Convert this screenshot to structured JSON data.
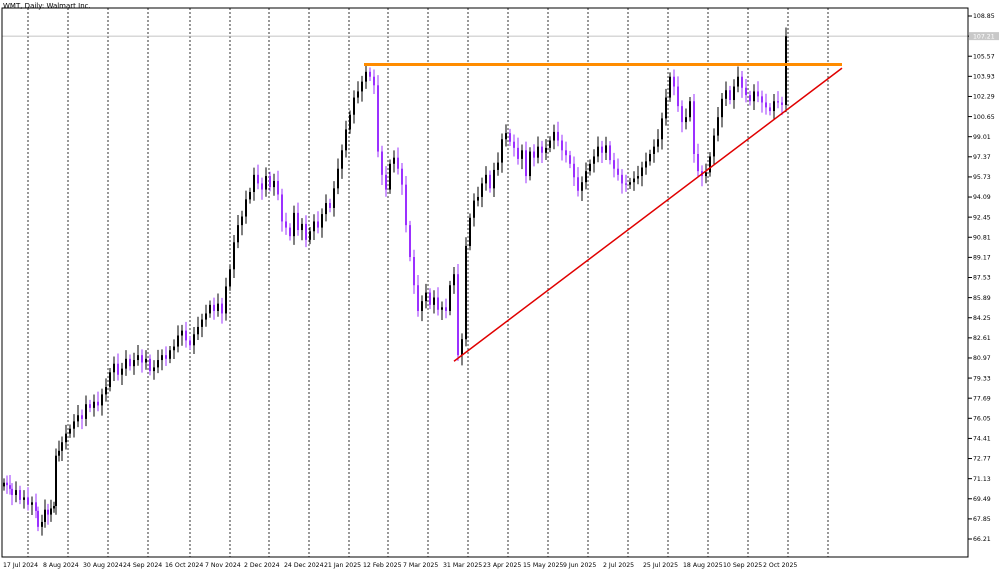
{
  "header": {
    "title": "WMT, Daily: Walmart Inc."
  },
  "colors": {
    "candle_up": "#000000",
    "candle_down": "#9b30ff",
    "resistance": "#ff8c00",
    "support": "#e00000",
    "grid": "#000000",
    "bid_line": "#b0b0b0"
  },
  "chart_data": {
    "type": "candlestick",
    "ylim": [
      65.0,
      109.5
    ],
    "y_ticks": [
      "108.85",
      "107.21",
      "105.57",
      "103.93",
      "102.29",
      "100.65",
      "99.01",
      "97.37",
      "95.73",
      "94.09",
      "92.45",
      "90.81",
      "89.17",
      "87.53",
      "85.89",
      "84.25",
      "82.61",
      "80.97",
      "79.33",
      "77.69",
      "76.05",
      "74.41",
      "72.77",
      "71.13",
      "69.49",
      "67.85",
      "66.21"
    ],
    "x_labels": [
      "17 Jul 2024",
      "8 Aug 2024",
      "30 Aug 2024",
      "24 Sep 2024",
      "16 Oct 2024",
      "7 Nov 2024",
      "2 Dec 2024",
      "24 Dec 2024",
      "21 Jan 2025",
      "12 Feb 2025",
      "7 Mar 2025",
      "31 Mar 2025",
      "23 Apr 2025",
      "15 May 2025",
      "9 Jun 2025",
      "2 Jul 2025",
      "25 Jul 2025",
      "18 Aug 2025",
      "10 Sep 2025",
      "2 Oct 2025"
    ],
    "current_price": "107.21",
    "resistance": {
      "level": 104.9,
      "from": "12 Feb 2025",
      "to": "future"
    },
    "support": {
      "from": [
        "31 Mar 2025",
        80.7
      ],
      "to": [
        "future",
        104.6
      ]
    },
    "closes": [
      [
        0,
        70.8
      ],
      [
        3,
        70.6
      ],
      [
        6,
        70.3
      ],
      [
        8,
        69.8
      ],
      [
        12,
        70.2
      ],
      [
        16,
        69.4
      ],
      [
        20,
        69.6
      ],
      [
        24,
        69.0
      ],
      [
        28,
        69.2
      ],
      [
        32,
        68.5
      ],
      [
        34,
        67.2
      ],
      [
        38,
        67.6
      ],
      [
        41,
        68.6
      ],
      [
        44,
        68.2
      ],
      [
        47,
        68.7
      ],
      [
        50,
        68.9
      ],
      [
        52,
        73.0
      ],
      [
        55,
        73.4
      ],
      [
        58,
        74.1
      ],
      [
        62,
        74.8
      ],
      [
        66,
        75.2
      ],
      [
        70,
        75.8
      ],
      [
        74,
        76.3
      ],
      [
        78,
        76.0
      ],
      [
        82,
        77.2
      ],
      [
        86,
        76.9
      ],
      [
        90,
        77.4
      ],
      [
        94,
        77.1
      ],
      [
        98,
        78.0
      ],
      [
        102,
        78.6
      ],
      [
        106,
        79.8
      ],
      [
        110,
        80.5
      ],
      [
        114,
        79.6
      ],
      [
        118,
        80.1
      ],
      [
        122,
        80.9
      ],
      [
        126,
        80.3
      ],
      [
        130,
        80.8
      ],
      [
        134,
        81.2
      ],
      [
        138,
        80.6
      ],
      [
        142,
        80.9
      ],
      [
        146,
        79.9
      ],
      [
        150,
        80.2
      ],
      [
        154,
        80.8
      ],
      [
        158,
        81.2
      ],
      [
        162,
        80.9
      ],
      [
        166,
        81.6
      ],
      [
        170,
        81.9
      ],
      [
        174,
        82.8
      ],
      [
        178,
        83.2
      ],
      [
        182,
        82.4
      ],
      [
        186,
        82.0
      ],
      [
        190,
        82.9
      ],
      [
        194,
        83.5
      ],
      [
        198,
        84.1
      ],
      [
        202,
        84.6
      ],
      [
        206,
        85.3
      ],
      [
        210,
        84.8
      ],
      [
        214,
        85.4
      ],
      [
        218,
        84.6
      ],
      [
        222,
        86.8
      ],
      [
        226,
        88.2
      ],
      [
        230,
        90.4
      ],
      [
        234,
        91.8
      ],
      [
        238,
        92.5
      ],
      [
        242,
        93.9
      ],
      [
        246,
        94.5
      ],
      [
        250,
        95.9
      ],
      [
        254,
        95.2
      ],
      [
        258,
        94.7
      ],
      [
        262,
        95.8
      ],
      [
        266,
        94.9
      ],
      [
        270,
        95.4
      ],
      [
        274,
        94.3
      ],
      [
        278,
        92.1
      ],
      [
        282,
        91.6
      ],
      [
        286,
        90.9
      ],
      [
        290,
        92.8
      ],
      [
        294,
        91.4
      ],
      [
        298,
        91.9
      ],
      [
        302,
        90.6
      ],
      [
        306,
        91.3
      ],
      [
        310,
        92.1
      ],
      [
        314,
        91.6
      ],
      [
        318,
        92.7
      ],
      [
        322,
        93.6
      ],
      [
        326,
        93.2
      ],
      [
        330,
        94.8
      ],
      [
        334,
        96.4
      ],
      [
        338,
        97.9
      ],
      [
        342,
        99.6
      ],
      [
        346,
        100.8
      ],
      [
        350,
        102.2
      ],
      [
        354,
        102.7
      ],
      [
        358,
        103.5
      ],
      [
        362,
        104.3
      ],
      [
        366,
        103.9
      ],
      [
        370,
        103.2
      ],
      [
        374,
        97.8
      ],
      [
        378,
        95.9
      ],
      [
        382,
        94.7
      ],
      [
        386,
        96.8
      ],
      [
        390,
        97.3
      ],
      [
        394,
        96.4
      ],
      [
        398,
        95.1
      ],
      [
        402,
        91.8
      ],
      [
        406,
        89.2
      ],
      [
        410,
        86.9
      ],
      [
        414,
        84.8
      ],
      [
        418,
        85.6
      ],
      [
        422,
        86.3
      ],
      [
        426,
        85.3
      ],
      [
        430,
        85.9
      ],
      [
        434,
        84.9
      ],
      [
        438,
        85.1
      ],
      [
        442,
        84.8
      ],
      [
        446,
        86.9
      ],
      [
        450,
        87.8
      ],
      [
        454,
        81.2
      ],
      [
        458,
        82.5
      ],
      [
        462,
        90.1
      ],
      [
        466,
        92.4
      ],
      [
        470,
        93.8
      ],
      [
        474,
        94.1
      ],
      [
        478,
        95.2
      ],
      [
        482,
        95.9
      ],
      [
        486,
        94.8
      ],
      [
        490,
        96.3
      ],
      [
        494,
        96.9
      ],
      [
        498,
        98.8
      ],
      [
        502,
        99.3
      ],
      [
        506,
        98.6
      ],
      [
        510,
        98.1
      ],
      [
        514,
        97.2
      ],
      [
        518,
        97.9
      ],
      [
        522,
        95.8
      ],
      [
        526,
        97.8
      ],
      [
        530,
        97.3
      ],
      [
        534,
        98.2
      ],
      [
        538,
        97.7
      ],
      [
        542,
        98.1
      ],
      [
        546,
        98.7
      ],
      [
        550,
        99.4
      ],
      [
        554,
        98.7
      ],
      [
        558,
        97.9
      ],
      [
        562,
        97.5
      ],
      [
        566,
        96.8
      ],
      [
        570,
        95.7
      ],
      [
        574,
        94.6
      ],
      [
        578,
        95.3
      ],
      [
        582,
        96.2
      ],
      [
        586,
        96.8
      ],
      [
        590,
        97.4
      ],
      [
        594,
        98.2
      ],
      [
        598,
        97.7
      ],
      [
        602,
        98.3
      ],
      [
        606,
        97.1
      ],
      [
        610,
        96.4
      ],
      [
        614,
        95.9
      ],
      [
        618,
        95.2
      ],
      [
        622,
        95.1
      ],
      [
        626,
        95.3
      ],
      [
        630,
        95.6
      ],
      [
        634,
        95.8
      ],
      [
        638,
        96.5
      ],
      [
        642,
        97.0
      ],
      [
        646,
        97.6
      ],
      [
        650,
        98.2
      ],
      [
        654,
        98.8
      ],
      [
        658,
        100.5
      ],
      [
        662,
        102.2
      ],
      [
        666,
        103.9
      ],
      [
        670,
        103.1
      ],
      [
        674,
        101.5
      ],
      [
        678,
        100.2
      ],
      [
        682,
        100.6
      ],
      [
        686,
        101.9
      ],
      [
        690,
        97.6
      ],
      [
        694,
        96.2
      ],
      [
        698,
        95.8
      ],
      [
        702,
        96.1
      ],
      [
        706,
        97.4
      ],
      [
        710,
        99.1
      ],
      [
        714,
        100.6
      ],
      [
        718,
        102.1
      ],
      [
        722,
        102.8
      ],
      [
        726,
        102.0
      ],
      [
        730,
        103.1
      ],
      [
        734,
        103.9
      ],
      [
        738,
        103.0
      ],
      [
        742,
        102.4
      ],
      [
        746,
        101.9
      ],
      [
        750,
        102.7
      ],
      [
        754,
        102.3
      ],
      [
        758,
        101.8
      ],
      [
        762,
        101.4
      ],
      [
        766,
        101.1
      ],
      [
        770,
        101.9
      ],
      [
        774,
        101.8
      ],
      [
        778,
        101.6
      ],
      [
        782,
        107.2
      ]
    ]
  }
}
